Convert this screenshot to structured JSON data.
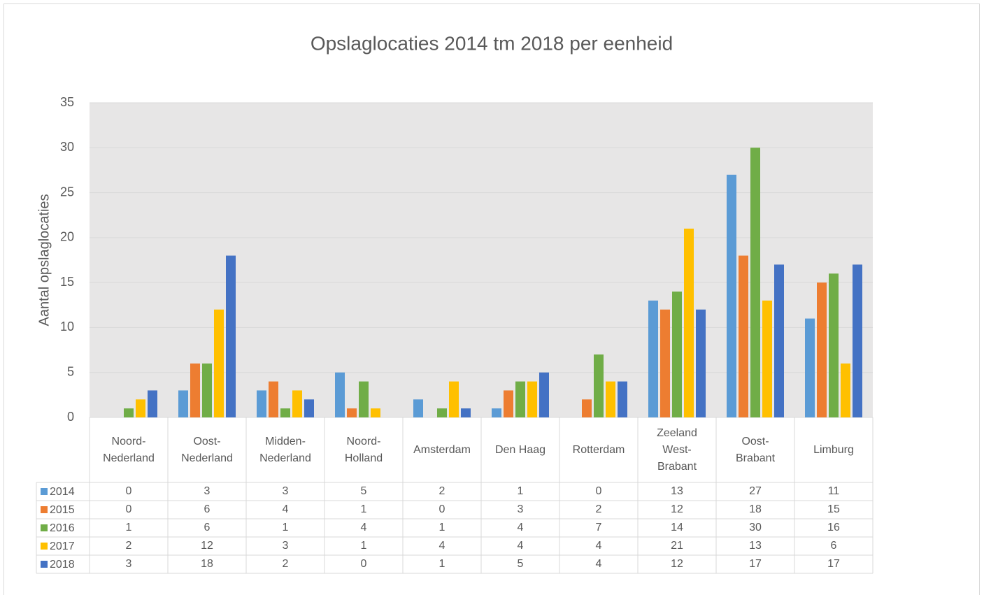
{
  "chart_data": {
    "type": "bar",
    "title": "Opslaglocaties 2014 tm 2018 per eenheid",
    "y_label": "Aantal opslaglocaties",
    "categories": [
      "Noord-Nederland",
      "Oost-Nederland",
      "Midden-Nederland",
      "Noord-Holland",
      "Amsterdam",
      "Den Haag",
      "Rotterdam",
      "Zeeland West-Brabant",
      "Oost-Brabant",
      "Limburg"
    ],
    "series": [
      {
        "name": "2014",
        "color": "#5b9bd5",
        "values": [
          0,
          3,
          3,
          5,
          2,
          1,
          0,
          13,
          27,
          11
        ]
      },
      {
        "name": "2015",
        "color": "#ed7d31",
        "values": [
          0,
          6,
          4,
          1,
          0,
          3,
          2,
          12,
          18,
          15
        ]
      },
      {
        "name": "2016",
        "color": "#70ad47",
        "values": [
          1,
          6,
          1,
          4,
          1,
          4,
          7,
          14,
          30,
          16
        ]
      },
      {
        "name": "2017",
        "color": "#ffc000",
        "values": [
          2,
          12,
          3,
          1,
          4,
          4,
          4,
          21,
          13,
          6
        ]
      },
      {
        "name": "2018",
        "color": "#4472c4",
        "values": [
          3,
          18,
          2,
          0,
          1,
          5,
          4,
          12,
          17,
          17
        ]
      }
    ],
    "ylim": [
      0,
      35
    ],
    "yticks": [
      0,
      5,
      10,
      15,
      20,
      25,
      30,
      35
    ],
    "grid": true,
    "data_table": true
  }
}
